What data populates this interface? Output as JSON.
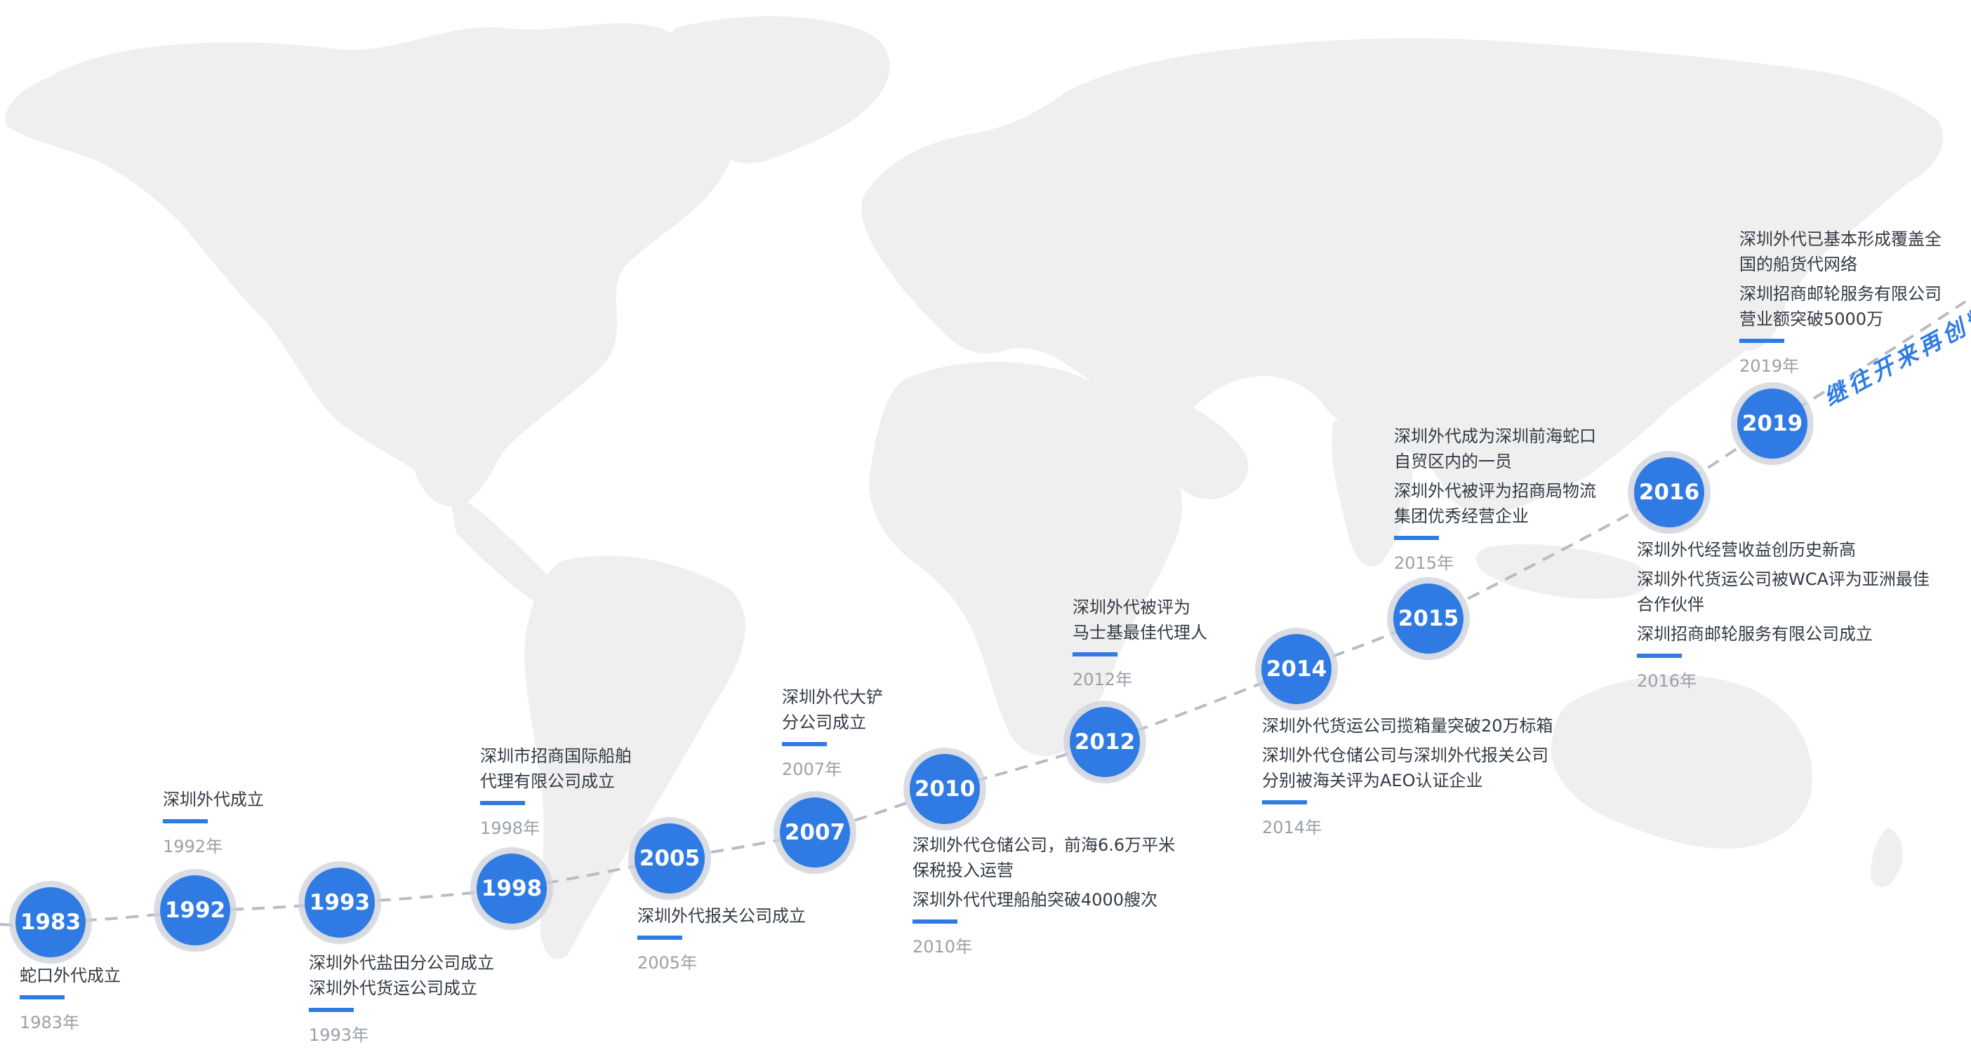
{
  "nodes": [
    {
      "label": "1983"
    },
    {
      "label": "1992"
    },
    {
      "label": "1993"
    },
    {
      "label": "1998"
    },
    {
      "label": "2005"
    },
    {
      "label": "2007"
    },
    {
      "label": "2010"
    },
    {
      "label": "2012"
    },
    {
      "label": "2014"
    },
    {
      "label": "2015"
    },
    {
      "label": "2016"
    },
    {
      "label": "2019"
    }
  ],
  "milestones": [
    {
      "entries": [
        "蛇口外代成立"
      ],
      "year": "1983年"
    },
    {
      "entries": [
        "深圳外代成立"
      ],
      "year": "1992年"
    },
    {
      "entries": [
        "深圳外代盐田分公司成立\n深圳外代货运公司成立"
      ],
      "year": "1993年"
    },
    {
      "entries": [
        "深圳市招商国际船舶\n代理有限公司成立"
      ],
      "year": "1998年"
    },
    {
      "entries": [
        "深圳外代报关公司成立"
      ],
      "year": "2005年"
    },
    {
      "entries": [
        "深圳外代大铲\n分公司成立"
      ],
      "year": "2007年"
    },
    {
      "entries": [
        "深圳外代仓储公司，前海6.6万平米\n保税投入运营",
        "深圳外代代理船舶突破4000艘次"
      ],
      "year": "2010年"
    },
    {
      "entries": [
        "深圳外代被评为\n马士基最佳代理人"
      ],
      "year": "2012年"
    },
    {
      "entries": [
        "深圳外代货运公司揽箱量突破20万标箱",
        "深圳外代仓储公司与深圳外代报关公司\n分别被海关评为AEO认证企业"
      ],
      "year": "2014年"
    },
    {
      "entries": [
        "深圳外代成为深圳前海蛇口\n自贸区内的一员",
        "深圳外代被评为招商局物流\n集团优秀经营企业"
      ],
      "year": "2015年"
    },
    {
      "entries": [
        "深圳外代经营收益创历史新高",
        "深圳外代货运公司被WCA评为亚洲最佳\n合作伙伴",
        "深圳招商邮轮服务有限公司成立"
      ],
      "year": "2016年"
    },
    {
      "entries": [
        "深圳外代已基本形成覆盖全\n国的船货代网络",
        "深圳招商邮轮服务有限公司\n营业额突破5000万"
      ],
      "year": "2019年"
    }
  ],
  "signature": "继往开来再创辉煌",
  "colors": {
    "accent": "#2f7be3",
    "map": "#efefef",
    "path": "#b8bcc2",
    "ring": "#d0d5dc"
  }
}
